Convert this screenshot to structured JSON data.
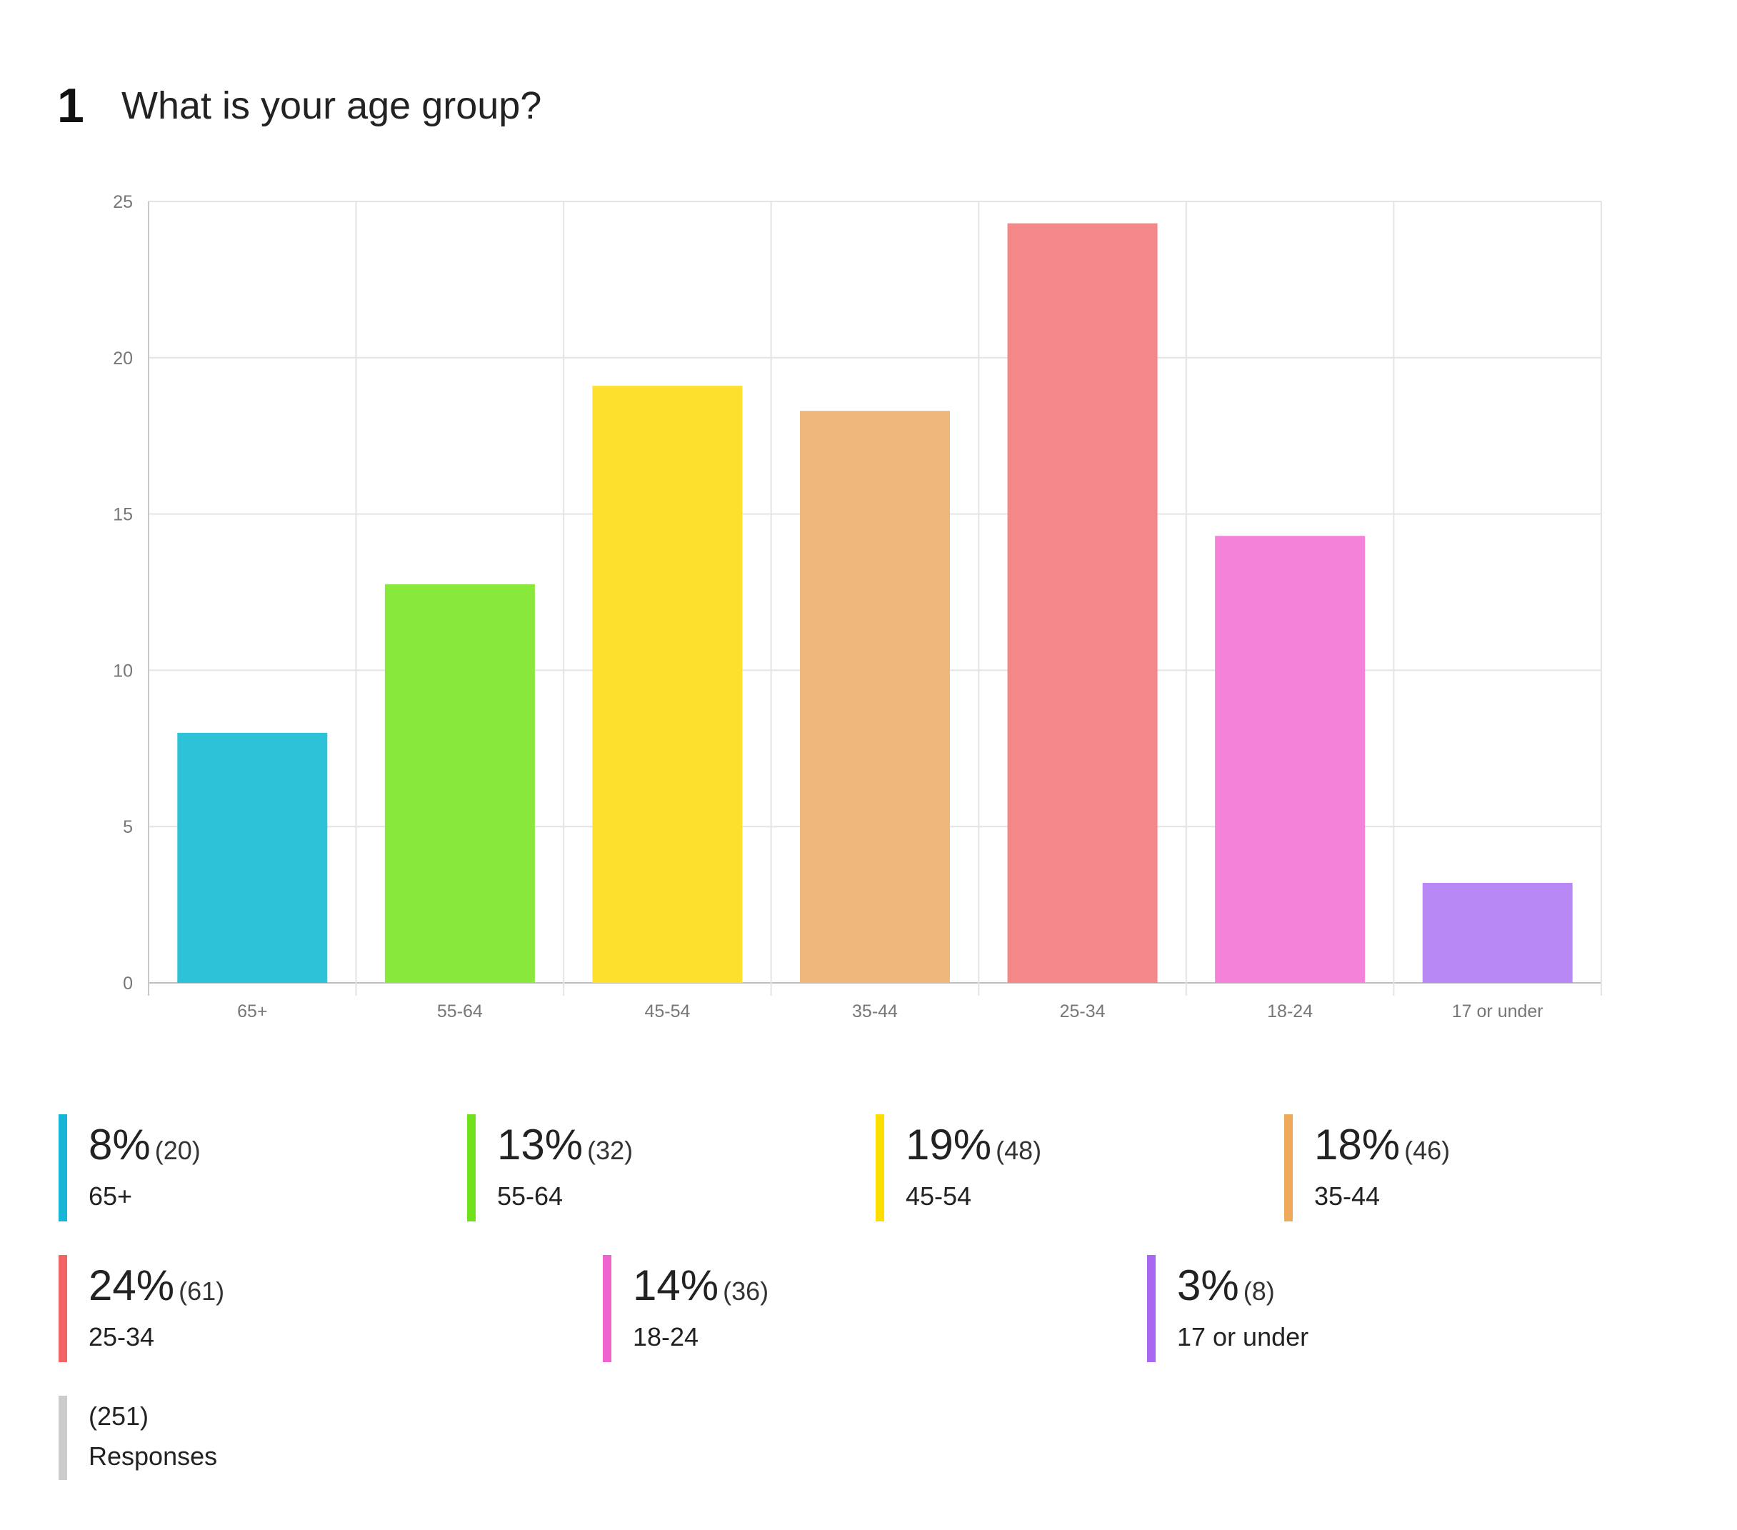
{
  "question": {
    "number": "1",
    "title": "What is your age group?"
  },
  "chart_data": {
    "type": "bar",
    "categories": [
      "65+",
      "55-64",
      "45-54",
      "35-44",
      "25-34",
      "18-24",
      "17 or under"
    ],
    "values": [
      8,
      12.75,
      19.1,
      18.3,
      24.3,
      14.3,
      3.2
    ],
    "colors": [
      "#2ec2d8",
      "#88e83c",
      "#fde02e",
      "#efb77c",
      "#f48787",
      "#f482d9",
      "#b888f4"
    ],
    "yticks": [
      "0",
      "5",
      "10",
      "15",
      "20",
      "25"
    ],
    "ylim": [
      0,
      25
    ],
    "grid": true
  },
  "legend": [
    {
      "pct": "8%",
      "count": "(20)",
      "label": "65+",
      "color": "#17b6d6"
    },
    {
      "pct": "13%",
      "count": "(32)",
      "label": "55-64",
      "color": "#6fe01a"
    },
    {
      "pct": "19%",
      "count": "(48)",
      "label": "45-54",
      "color": "#fedd00"
    },
    {
      "pct": "18%",
      "count": "(46)",
      "label": "35-44",
      "color": "#eea95a"
    },
    {
      "pct": "24%",
      "count": "(61)",
      "label": "25-34",
      "color": "#f26464"
    },
    {
      "pct": "14%",
      "count": "(36)",
      "label": "18-24",
      "color": "#f062ce"
    },
    {
      "pct": "3%",
      "count": "(8)",
      "label": "17 or under",
      "color": "#a868f1"
    }
  ],
  "responses": {
    "count": "(251)",
    "label": "Responses"
  }
}
